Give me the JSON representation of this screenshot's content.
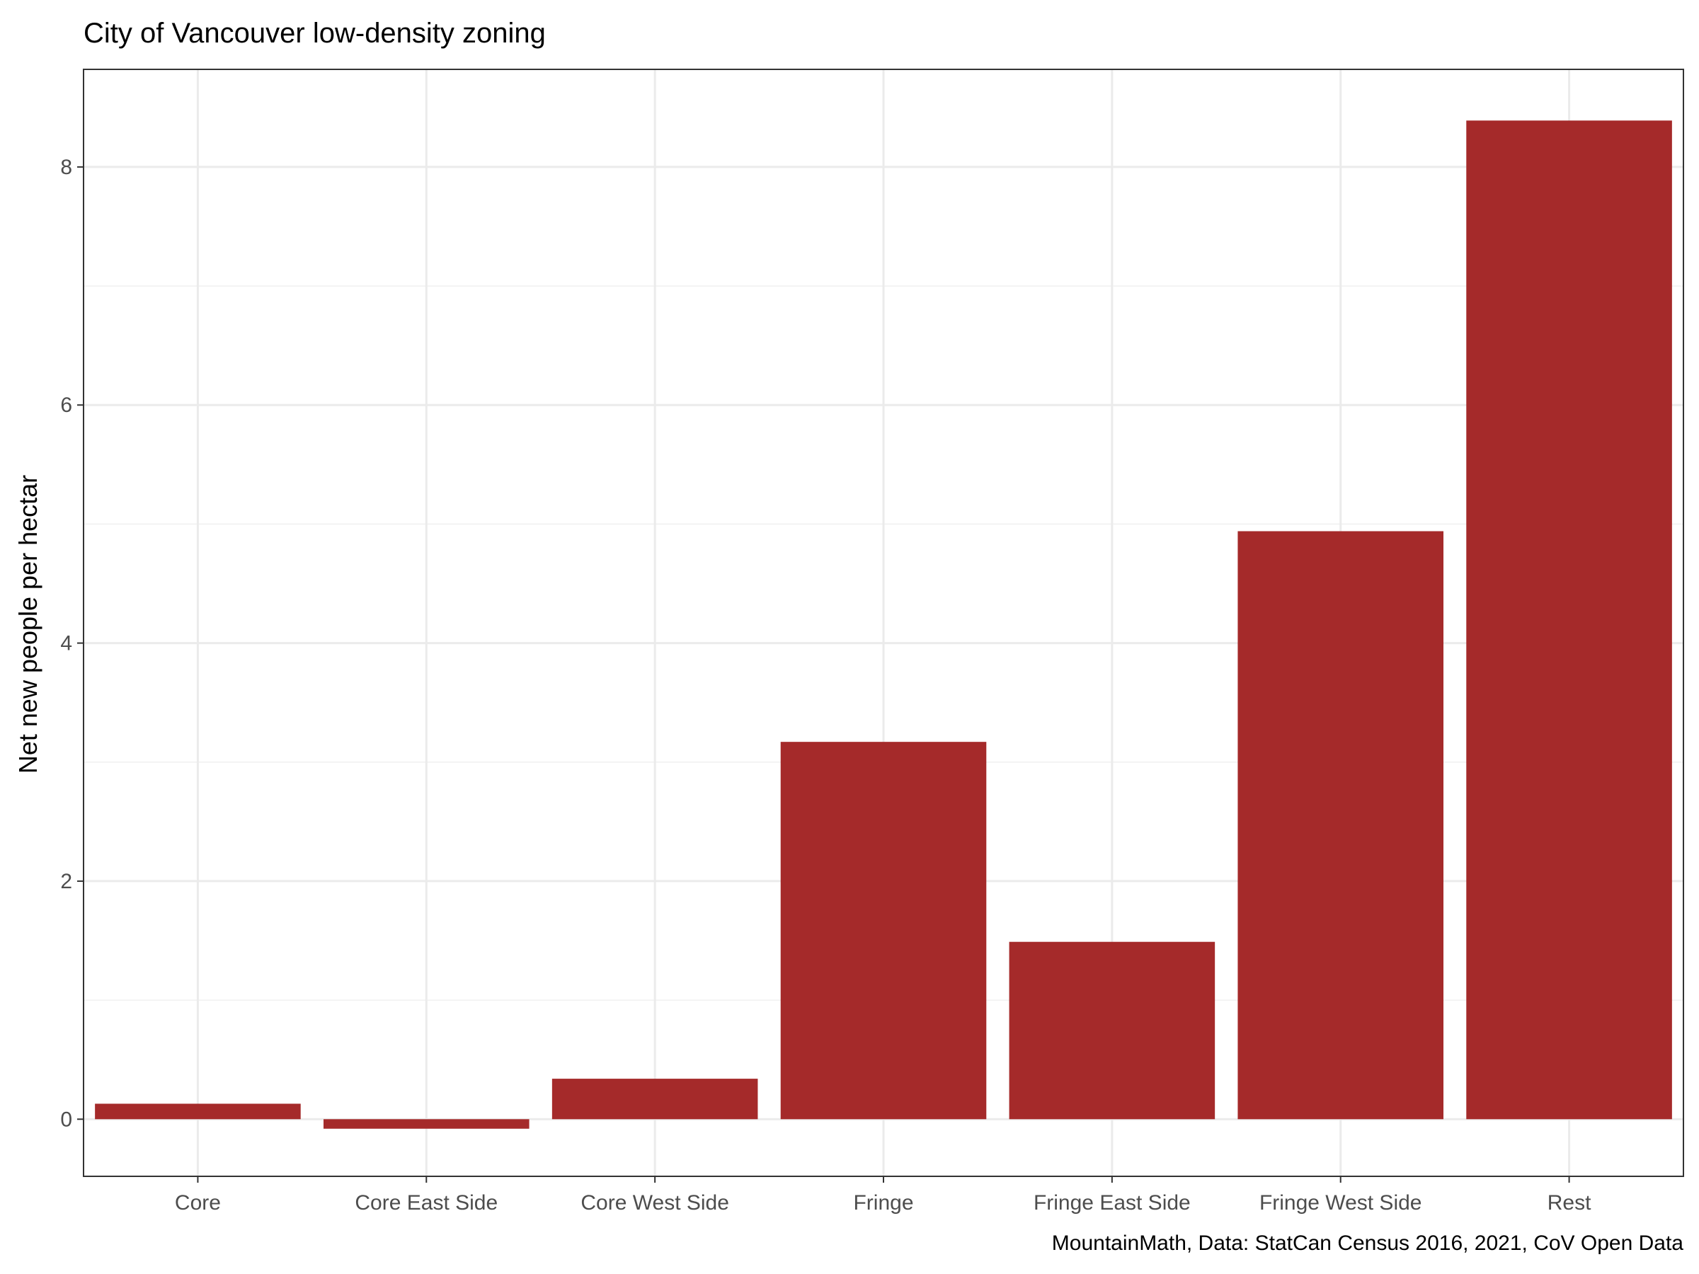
{
  "chart_data": {
    "type": "bar",
    "title": "City of Vancouver low-density zoning",
    "xlabel": "",
    "ylabel": "Net new people per hectar",
    "caption": "MountainMath, Data: StatCan Census 2016, 2021, CoV Open Data",
    "categories": [
      "Core",
      "Core East Side",
      "Core West Side",
      "Fringe",
      "Fringe East Side",
      "Fringe West Side",
      "Rest"
    ],
    "values": [
      0.13,
      -0.08,
      0.34,
      3.17,
      1.49,
      4.94,
      8.39
    ],
    "ylim": [
      -0.48,
      8.82
    ],
    "yticks": [
      0,
      2,
      4,
      6,
      8
    ],
    "grid": true,
    "legend": "none",
    "bar_color": "#a52a2a"
  }
}
